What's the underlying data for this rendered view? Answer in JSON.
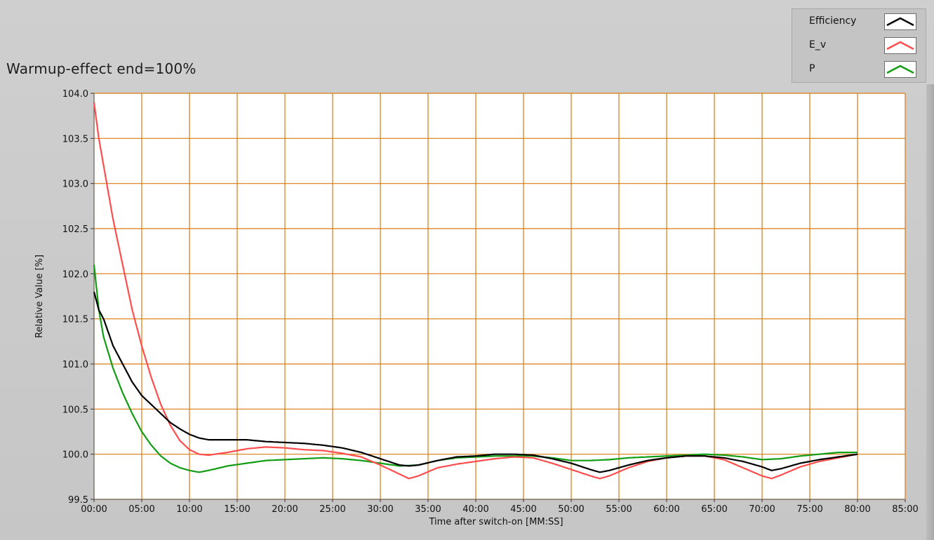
{
  "title": "Warmup-effect end=100%",
  "legend": [
    {
      "label": "Efficiency",
      "color": "#000000"
    },
    {
      "label": "E_v",
      "color": "#ff4d4d"
    },
    {
      "label": "P",
      "color": "#119d11"
    }
  ],
  "colors": {
    "grid": "#d97a10",
    "plot_bg": "#ffffff",
    "frame": "#c8c8c8"
  },
  "chart_data": {
    "type": "line",
    "xlabel": "Time after switch-on [MM:SS]",
    "ylabel": "Relative Value [%]",
    "xlim": [
      0,
      85
    ],
    "ylim": [
      99.5,
      104.0
    ],
    "x_ticks": [
      "00:00",
      "05:00",
      "10:00",
      "15:00",
      "20:00",
      "25:00",
      "30:00",
      "35:00",
      "40:00",
      "45:00",
      "50:00",
      "55:00",
      "60:00",
      "65:00",
      "70:00",
      "75:00",
      "80:00",
      "85:00"
    ],
    "y_ticks": [
      "99.5",
      "100.0",
      "100.5",
      "101.0",
      "101.5",
      "102.0",
      "102.5",
      "103.0",
      "103.5",
      "104.0"
    ],
    "grid": true,
    "legend_position": "top-right",
    "series": [
      {
        "name": "Efficiency",
        "color": "#000000",
        "x": [
          0,
          0.5,
          1,
          2,
          3,
          4,
          5,
          6,
          7,
          8,
          9,
          10,
          11,
          12,
          14,
          16,
          18,
          20,
          22,
          24,
          26,
          28,
          30,
          32,
          33,
          34,
          36,
          38,
          40,
          42,
          44,
          46,
          48,
          50,
          52,
          53,
          54,
          56,
          58,
          60,
          62,
          64,
          66,
          68,
          70,
          71,
          72,
          74,
          76,
          78,
          80
        ],
        "y": [
          101.8,
          101.6,
          101.5,
          101.2,
          101.0,
          100.8,
          100.65,
          100.55,
          100.45,
          100.35,
          100.28,
          100.22,
          100.18,
          100.16,
          100.16,
          100.16,
          100.14,
          100.13,
          100.12,
          100.1,
          100.07,
          100.02,
          99.95,
          99.88,
          99.87,
          99.88,
          99.93,
          99.97,
          99.98,
          100.0,
          100.0,
          99.99,
          99.95,
          99.9,
          99.83,
          99.8,
          99.82,
          99.88,
          99.93,
          99.96,
          99.98,
          99.98,
          99.96,
          99.92,
          99.86,
          99.82,
          99.84,
          99.9,
          99.94,
          99.97,
          100.0
        ]
      },
      {
        "name": "E_v",
        "color": "#ff4d4d",
        "x": [
          0,
          0.5,
          1,
          2,
          3,
          4,
          5,
          6,
          7,
          8,
          9,
          10,
          11,
          12,
          14,
          16,
          18,
          20,
          22,
          24,
          26,
          28,
          30,
          32,
          33,
          34,
          36,
          38,
          40,
          42,
          44,
          46,
          48,
          50,
          52,
          53,
          54,
          56,
          58,
          60,
          62,
          64,
          66,
          68,
          70,
          71,
          72,
          74,
          76,
          78,
          80
        ],
        "y": [
          103.9,
          103.5,
          103.2,
          102.6,
          102.1,
          101.6,
          101.2,
          100.85,
          100.55,
          100.32,
          100.15,
          100.05,
          100.0,
          99.99,
          100.02,
          100.06,
          100.08,
          100.07,
          100.05,
          100.04,
          100.01,
          99.97,
          99.88,
          99.78,
          99.73,
          99.76,
          99.85,
          99.89,
          99.92,
          99.95,
          99.97,
          99.96,
          99.9,
          99.83,
          99.76,
          99.73,
          99.76,
          99.85,
          99.92,
          99.96,
          99.98,
          99.98,
          99.94,
          99.85,
          99.76,
          99.73,
          99.77,
          99.86,
          99.92,
          99.96,
          100.0
        ]
      },
      {
        "name": "P",
        "color": "#119d11",
        "x": [
          0,
          0.5,
          1,
          2,
          3,
          4,
          5,
          6,
          7,
          8,
          9,
          10,
          11,
          12,
          14,
          16,
          18,
          20,
          22,
          24,
          26,
          28,
          30,
          32,
          34,
          36,
          38,
          40,
          42,
          44,
          46,
          48,
          50,
          52,
          54,
          56,
          58,
          60,
          62,
          64,
          66,
          68,
          70,
          72,
          74,
          76,
          78,
          80
        ],
        "y": [
          102.1,
          101.6,
          101.3,
          100.95,
          100.68,
          100.45,
          100.25,
          100.1,
          99.98,
          99.9,
          99.85,
          99.82,
          99.8,
          99.82,
          99.87,
          99.9,
          99.93,
          99.94,
          99.95,
          99.96,
          99.95,
          99.93,
          99.9,
          99.87,
          99.88,
          99.93,
          99.96,
          99.97,
          99.98,
          99.98,
          99.98,
          99.96,
          99.93,
          99.93,
          99.94,
          99.96,
          99.97,
          99.98,
          99.99,
          100.0,
          99.99,
          99.97,
          99.94,
          99.95,
          99.98,
          100.0,
          100.02,
          100.02
        ]
      }
    ]
  }
}
